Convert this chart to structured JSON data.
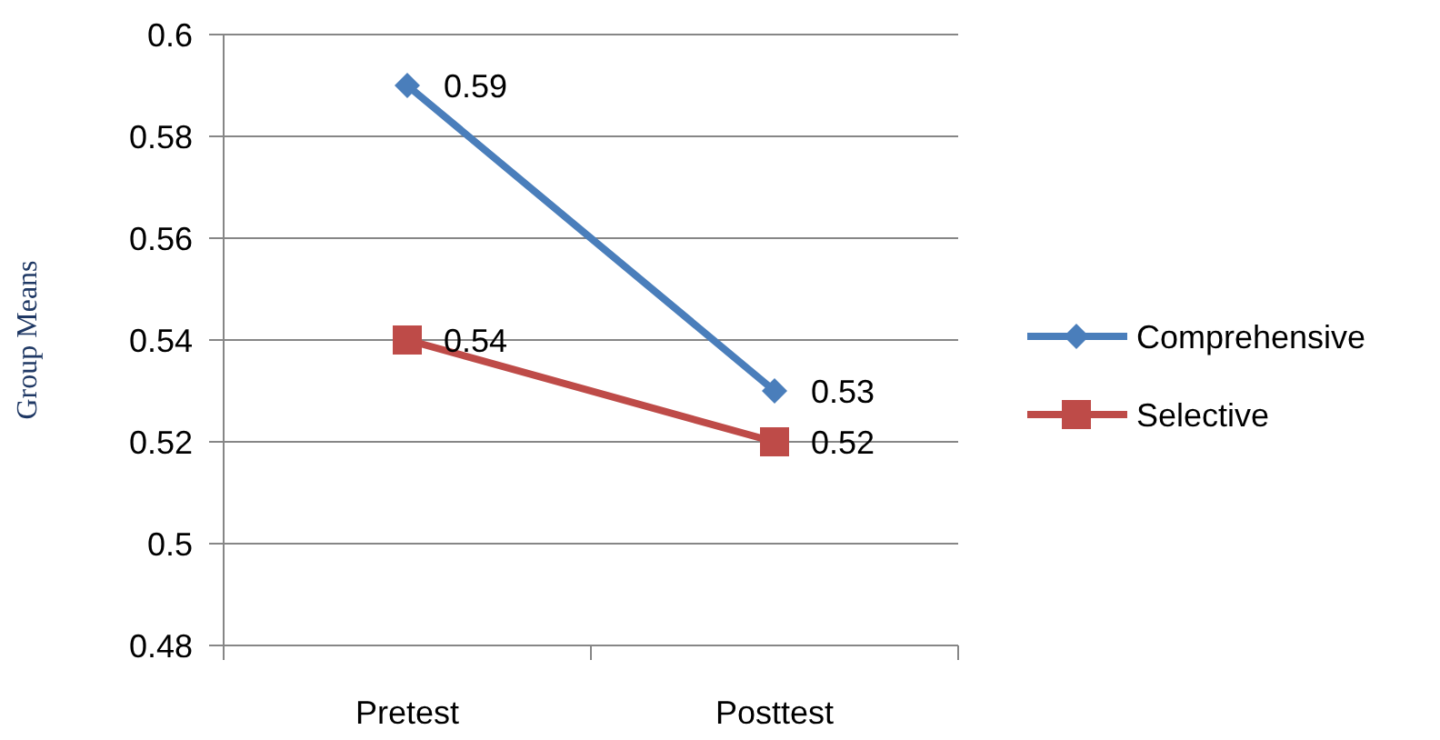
{
  "chart_data": {
    "type": "line",
    "ylabel": "Group Means",
    "categories": [
      "Pretest",
      "Posttest"
    ],
    "series": [
      {
        "name": "Comprehensive",
        "color": "#4a7ebb",
        "values": [
          0.59,
          0.53
        ],
        "marker": "diamond"
      },
      {
        "name": "Selective",
        "color": "#be4b48",
        "values": [
          0.54,
          0.52
        ],
        "marker": "square"
      }
    ],
    "ylim": [
      0.48,
      0.6
    ],
    "yticks": [
      0.48,
      0.5,
      0.52,
      0.54,
      0.56,
      0.58,
      0.6
    ],
    "grid": "y",
    "legend": "right",
    "data_labels": true,
    "line_style": "solid"
  }
}
